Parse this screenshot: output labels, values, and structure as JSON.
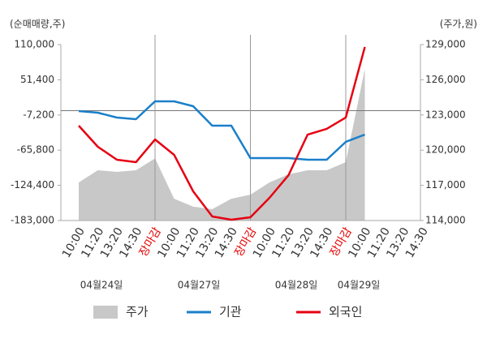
{
  "chart_data": {
    "type": "line",
    "y_unit_label": "(순매매량,주)",
    "y2_unit_label": "(주가,원)",
    "categories": [
      "10:00",
      "11:20",
      "13:20",
      "14:30",
      "장마감",
      "10:00",
      "11:20",
      "13:20",
      "14:30",
      "장마감",
      "10:00",
      "11:20",
      "13:20",
      "14:30",
      "장마감",
      "10:00",
      "11:20",
      "13:20",
      "14:30"
    ],
    "category_colors": [
      "#333",
      "#333",
      "#333",
      "#333",
      "#e60000",
      "#333",
      "#333",
      "#333",
      "#333",
      "#e60000",
      "#333",
      "#333",
      "#333",
      "#333",
      "#e60000",
      "#333",
      "#333",
      "#333",
      "#333"
    ],
    "annotations": [
      "04월24일",
      "04월27일",
      "04월28일",
      "04월29일"
    ],
    "series": [
      {
        "name": "주가",
        "type": "area",
        "axis": "y2",
        "color": "#c8c8c8",
        "values": [
          117250,
          118290,
          118150,
          118290,
          119300,
          115860,
          115180,
          114970,
          115860,
          116200,
          117250,
          117940,
          118290,
          118290,
          118980,
          126930,
          null,
          null,
          null
        ]
      },
      {
        "name": "기관",
        "type": "line",
        "color": "#1a7fc9",
        "values": [
          -700,
          -3400,
          -11500,
          -14200,
          15500,
          15500,
          7400,
          -25000,
          -25000,
          -79000,
          -79000,
          -79000,
          -81700,
          -81700,
          -52000,
          -39900,
          null,
          null,
          null
        ]
      },
      {
        "name": "외국인",
        "type": "line",
        "color": "#e60012",
        "values": [
          -25000,
          -60100,
          -81700,
          -85800,
          -48000,
          -73600,
          -134400,
          -176200,
          -181600,
          -177600,
          -145200,
          -107400,
          -39900,
          -30400,
          -11500,
          106000,
          null,
          null,
          null
        ]
      }
    ],
    "ylim": [
      -183000,
      110000
    ],
    "yticks": [
      {
        "value": 110000,
        "label": "110,000"
      },
      {
        "value": 51400,
        "label": "51,400"
      },
      {
        "value": -7200,
        "label": "-7,200"
      },
      {
        "value": -65800,
        "label": "-65,800"
      },
      {
        "value": -124400,
        "label": "-124,400"
      },
      {
        "value": -183000,
        "label": "-183,000"
      }
    ],
    "y2lim": [
      114000,
      129000
    ],
    "y2ticks": [
      {
        "value": 129000,
        "label": "129,000"
      },
      {
        "value": 126000,
        "label": "126,000"
      },
      {
        "value": 123000,
        "label": "123,000"
      },
      {
        "value": 120000,
        "label": "120,000"
      },
      {
        "value": 117000,
        "label": "117,000"
      },
      {
        "value": 114000,
        "label": "114,000"
      }
    ],
    "legend": "bottom"
  }
}
